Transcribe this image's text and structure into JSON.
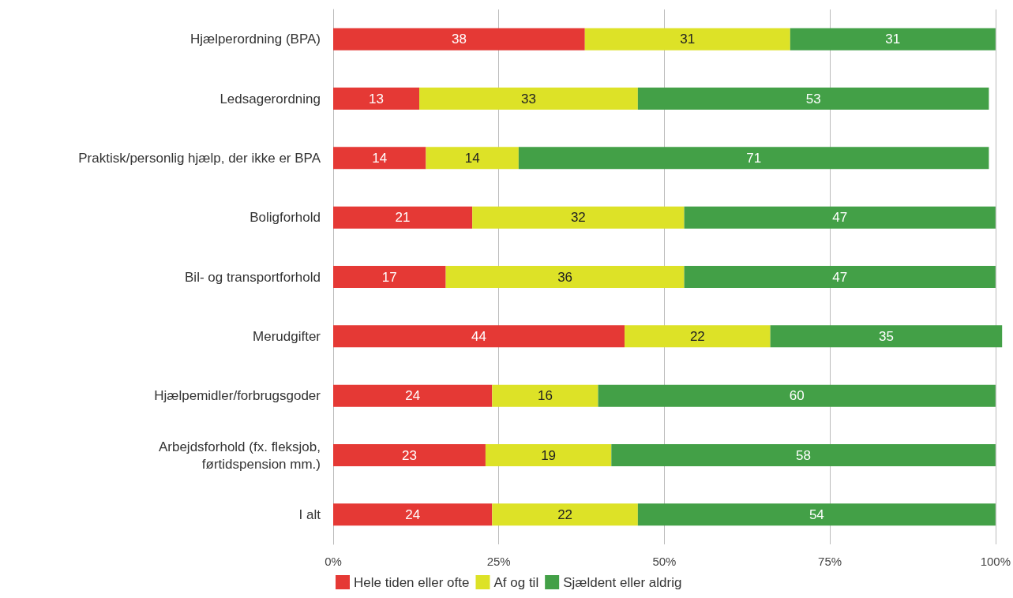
{
  "chart_data": {
    "type": "bar",
    "orientation": "horizontal",
    "stacked": true,
    "categories": [
      "Hjælperordning (BPA)",
      "Ledsagerordning",
      "Praktisk/personlig hjælp, der ikke er BPA",
      "Boligforhold",
      "Bil- og transportforhold",
      "Merudgifter",
      "Hjælpemidler/forbrugsgoder",
      "Arbejdsforhold (fx. fleksjob,\nførtidspension mm.)",
      "I alt"
    ],
    "series": [
      {
        "name": "Hele tiden eller ofte",
        "color": "#e53935",
        "values": [
          38,
          13,
          14,
          21,
          17,
          44,
          24,
          23,
          24
        ]
      },
      {
        "name": "Af og til",
        "color": "#dde227",
        "values": [
          31,
          33,
          14,
          32,
          36,
          22,
          16,
          19,
          22
        ]
      },
      {
        "name": "Sjældent eller aldrig",
        "color": "#43a047",
        "values": [
          31,
          53,
          71,
          47,
          47,
          35,
          60,
          58,
          54
        ]
      }
    ],
    "xlim": [
      0,
      101
    ],
    "xticks": [
      {
        "value": 0,
        "label": "0%"
      },
      {
        "value": 25,
        "label": "25%"
      },
      {
        "value": 50,
        "label": "50%"
      },
      {
        "value": 75,
        "label": "75%"
      },
      {
        "value": 100,
        "label": "100%"
      }
    ],
    "grid": "x",
    "legend": "bottom left",
    "data_labels": true
  }
}
